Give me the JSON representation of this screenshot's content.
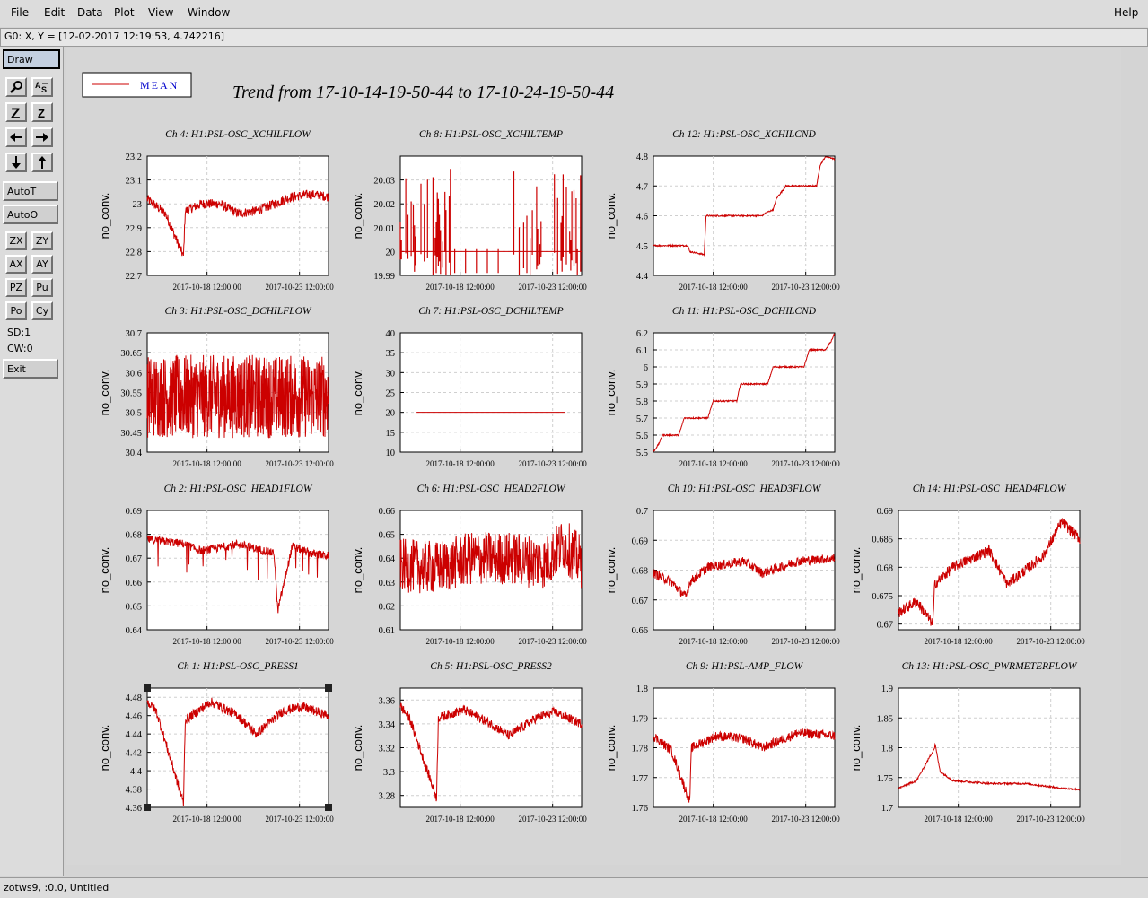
{
  "menu": {
    "items": [
      "File",
      "Edit",
      "Data",
      "Plot",
      "View",
      "Window"
    ],
    "help": "Help"
  },
  "coords": "G0: X, Y = [12-02-2017 12:19:53, 4.742216]",
  "toolbar": {
    "draw": "Draw",
    "autot": "AutoT",
    "autoo": "AutoO",
    "zx": "ZX",
    "zy": "ZY",
    "ax": "AX",
    "ay": "AY",
    "pz": "PZ",
    "pu": "Pu",
    "po": "Po",
    "cy": "Cy",
    "sd": "SD:1",
    "cw": "CW:0",
    "exit": "Exit"
  },
  "legend": {
    "label": "MEAN",
    "color": "#cc0000"
  },
  "title": "Trend from 17-10-14-19-50-44 to 17-10-24-19-50-44",
  "status": "zotws9, :0.0, Untitled",
  "chart_data": [
    {
      "type": "line",
      "title": "Ch 4: H1:PSL-OSC_XCHILFLOW",
      "ylabel": "no_conv.",
      "yticks": [
        "22.7",
        "22.8",
        "22.9",
        "23",
        "23.1",
        "23.2"
      ],
      "ylim": [
        22.7,
        23.2
      ],
      "xticks": [
        "2017-10-18 12:00:00",
        "2017-10-23 12:00:00"
      ],
      "shape": "noisydip",
      "series": [
        {
          "name": "MEAN",
          "x": [
            0,
            0.1,
            0.2,
            0.21,
            0.3,
            0.4,
            0.5,
            0.6,
            0.7,
            0.8,
            0.9,
            1
          ],
          "y": [
            23.02,
            22.96,
            22.78,
            22.97,
            23.0,
            23.0,
            22.96,
            22.97,
            23.0,
            23.03,
            23.04,
            23.03
          ]
        }
      ]
    },
    {
      "type": "line",
      "title": "Ch 8: H1:PSL-OSC_XCHILTEMP",
      "ylabel": "no_conv.",
      "yticks": [
        "19.99",
        "20",
        "20.01",
        "20.02",
        "20.03"
      ],
      "ylim": [
        19.99,
        20.04
      ],
      "xticks": [
        "2017-10-18 12:00:00",
        "2017-10-23 12:00:00"
      ],
      "shape": "spiky",
      "series": [
        {
          "name": "MEAN",
          "x": [
            0,
            1
          ],
          "y": [
            20.0,
            20.0
          ]
        }
      ]
    },
    {
      "type": "line",
      "title": "Ch 12: H1:PSL-OSC_XCHILCND",
      "ylabel": "no_conv.",
      "yticks": [
        "4.4",
        "4.5",
        "4.6",
        "4.7",
        "4.8"
      ],
      "ylim": [
        4.4,
        4.8
      ],
      "xticks": [
        "2017-10-18 12:00:00",
        "2017-10-23 12:00:00"
      ],
      "shape": "step",
      "series": [
        {
          "name": "MEAN",
          "x": [
            0,
            0.19,
            0.2,
            0.28,
            0.29,
            0.46,
            0.6,
            0.62,
            0.66,
            0.68,
            0.72,
            0.73,
            0.9,
            0.92,
            0.95,
            1.0
          ],
          "y": [
            4.5,
            4.5,
            4.48,
            4.47,
            4.6,
            4.6,
            4.6,
            4.61,
            4.62,
            4.66,
            4.69,
            4.7,
            4.7,
            4.77,
            4.8,
            4.79
          ]
        }
      ]
    },
    {
      "type": "line",
      "title": "Ch 3: H1:PSL-OSC_DCHILFLOW",
      "ylabel": "no_conv.",
      "yticks": [
        "30.4",
        "30.45",
        "30.5",
        "30.55",
        "30.6",
        "30.65",
        "30.7"
      ],
      "ylim": [
        30.4,
        30.7
      ],
      "xticks": [
        "2017-10-18 12:00:00",
        "2017-10-23 12:00:00"
      ],
      "shape": "band",
      "series": [
        {
          "name": "MEAN",
          "x": [
            0,
            1
          ],
          "y": [
            30.54,
            30.54
          ]
        }
      ]
    },
    {
      "type": "line",
      "title": "Ch 7: H1:PSL-OSC_DCHILTEMP",
      "ylabel": "no_conv.",
      "yticks": [
        "10",
        "15",
        "20",
        "25",
        "30",
        "35",
        "40"
      ],
      "ylim": [
        10,
        40
      ],
      "xticks": [
        "2017-10-18 12:00:00",
        "2017-10-23 12:00:00"
      ],
      "shape": "flat",
      "series": [
        {
          "name": "MEAN",
          "x": [
            0.09,
            0.91
          ],
          "y": [
            20,
            20
          ]
        }
      ]
    },
    {
      "type": "line",
      "title": "Ch 11: H1:PSL-OSC_DCHILCND",
      "ylabel": "no_conv.",
      "yticks": [
        "5.5",
        "5.6",
        "5.7",
        "5.8",
        "5.9",
        "6",
        "6.1",
        "6.2"
      ],
      "ylim": [
        5.5,
        6.2
      ],
      "xticks": [
        "2017-10-18 12:00:00",
        "2017-10-23 12:00:00"
      ],
      "shape": "step",
      "series": [
        {
          "name": "MEAN",
          "x": [
            0,
            0.03,
            0.05,
            0.14,
            0.17,
            0.3,
            0.33,
            0.46,
            0.48,
            0.63,
            0.66,
            0.83,
            0.86,
            0.95,
            0.98,
            1.0
          ],
          "y": [
            5.5,
            5.55,
            5.6,
            5.6,
            5.7,
            5.7,
            5.8,
            5.8,
            5.9,
            5.9,
            6.0,
            6.0,
            6.1,
            6.1,
            6.15,
            6.2
          ]
        }
      ]
    },
    {
      "type": "line",
      "title": "Ch 2: H1:PSL-OSC_HEAD1FLOW",
      "ylabel": "no_conv.",
      "yticks": [
        "0.64",
        "0.65",
        "0.66",
        "0.67",
        "0.68",
        "0.69"
      ],
      "ylim": [
        0.64,
        0.69
      ],
      "xticks": [
        "2017-10-18 12:00:00",
        "2017-10-23 12:00:00"
      ],
      "shape": "dips",
      "series": [
        {
          "name": "MEAN",
          "x": [
            0,
            0.2,
            0.3,
            0.5,
            0.7,
            0.72,
            0.8,
            0.9,
            1
          ],
          "y": [
            0.678,
            0.676,
            0.673,
            0.676,
            0.672,
            0.648,
            0.675,
            0.672,
            0.671
          ]
        }
      ]
    },
    {
      "type": "line",
      "title": "Ch 6: H1:PSL-OSC_HEAD2FLOW",
      "ylabel": "no_conv.",
      "yticks": [
        "0.61",
        "0.62",
        "0.63",
        "0.64",
        "0.65",
        "0.66"
      ],
      "ylim": [
        0.61,
        0.66
      ],
      "xticks": [
        "2017-10-18 12:00:00",
        "2017-10-23 12:00:00"
      ],
      "shape": "noisy",
      "series": [
        {
          "name": "MEAN",
          "x": [
            0,
            0.2,
            0.4,
            0.6,
            0.8,
            0.9,
            1
          ],
          "y": [
            0.637,
            0.636,
            0.64,
            0.64,
            0.638,
            0.646,
            0.638
          ]
        }
      ]
    },
    {
      "type": "line",
      "title": "Ch 10: H1:PSL-OSC_HEAD3FLOW",
      "ylabel": "no_conv.",
      "yticks": [
        "0.66",
        "0.67",
        "0.68",
        "0.69",
        "0.7"
      ],
      "ylim": [
        0.66,
        0.7
      ],
      "xticks": [
        "2017-10-18 12:00:00",
        "2017-10-23 12:00:00"
      ],
      "shape": "noisydip",
      "series": [
        {
          "name": "MEAN",
          "x": [
            0,
            0.1,
            0.18,
            0.2,
            0.3,
            0.5,
            0.6,
            0.8,
            1
          ],
          "y": [
            0.679,
            0.676,
            0.671,
            0.676,
            0.681,
            0.683,
            0.679,
            0.683,
            0.684
          ]
        }
      ]
    },
    {
      "type": "line",
      "title": "Ch 14: H1:PSL-OSC_HEAD4FLOW",
      "ylabel": "no_conv.",
      "yticks": [
        "0.67",
        "0.675",
        "0.68",
        "0.685",
        "0.69"
      ],
      "ylim": [
        0.669,
        0.69
      ],
      "xticks": [
        "2017-10-18 12:00:00",
        "2017-10-23 12:00:00"
      ],
      "shape": "rising",
      "series": [
        {
          "name": "MEAN",
          "x": [
            0,
            0.1,
            0.19,
            0.2,
            0.3,
            0.5,
            0.6,
            0.8,
            0.9,
            1
          ],
          "y": [
            0.672,
            0.674,
            0.67,
            0.677,
            0.68,
            0.683,
            0.677,
            0.682,
            0.688,
            0.685
          ]
        }
      ]
    },
    {
      "type": "line",
      "title": "Ch 1: H1:PSL-OSC_PRESS1",
      "ylabel": "no_conv.",
      "yticks": [
        "4.36",
        "4.38",
        "4.4",
        "4.42",
        "4.44",
        "4.46",
        "4.48"
      ],
      "ylim": [
        4.36,
        4.49
      ],
      "xticks": [
        "2017-10-18 12:00:00",
        "2017-10-23 12:00:00"
      ],
      "shape": "noisydip",
      "series": [
        {
          "name": "MEAN",
          "x": [
            0,
            0.05,
            0.2,
            0.21,
            0.35,
            0.5,
            0.6,
            0.75,
            0.85,
            1
          ],
          "y": [
            4.475,
            4.465,
            4.365,
            4.455,
            4.475,
            4.46,
            4.44,
            4.465,
            4.47,
            4.46
          ]
        }
      ]
    },
    {
      "type": "line",
      "title": "Ch 5: H1:PSL-OSC_PRESS2",
      "ylabel": "no_conv.",
      "yticks": [
        "3.28",
        "3.3",
        "3.32",
        "3.34",
        "3.36"
      ],
      "ylim": [
        3.27,
        3.37
      ],
      "xticks": [
        "2017-10-18 12:00:00",
        "2017-10-23 12:00:00"
      ],
      "shape": "noisydip",
      "series": [
        {
          "name": "MEAN",
          "x": [
            0,
            0.05,
            0.2,
            0.21,
            0.35,
            0.5,
            0.6,
            0.75,
            0.85,
            1
          ],
          "y": [
            3.355,
            3.345,
            3.278,
            3.345,
            3.352,
            3.34,
            3.33,
            3.345,
            3.35,
            3.34
          ]
        }
      ]
    },
    {
      "type": "line",
      "title": "Ch 9: H1:PSL-AMP_FLOW",
      "ylabel": "no_conv.",
      "yticks": [
        "1.76",
        "1.77",
        "1.78",
        "1.79",
        "1.8"
      ],
      "ylim": [
        1.76,
        1.8
      ],
      "xticks": [
        "2017-10-18 12:00:00",
        "2017-10-23 12:00:00"
      ],
      "shape": "noisydip",
      "series": [
        {
          "name": "MEAN",
          "x": [
            0,
            0.1,
            0.2,
            0.21,
            0.35,
            0.5,
            0.6,
            0.8,
            1
          ],
          "y": [
            1.784,
            1.779,
            1.762,
            1.78,
            1.784,
            1.783,
            1.78,
            1.785,
            1.784
          ]
        }
      ]
    },
    {
      "type": "line",
      "title": "Ch 13: H1:PSL-OSC_PWRMETERFLOW",
      "ylabel": "no_conv.",
      "yticks": [
        "1.7",
        "1.75",
        "1.8",
        "1.85",
        "1.9"
      ],
      "ylim": [
        1.7,
        1.9
      ],
      "xticks": [
        "2017-10-18 12:00:00",
        "2017-10-23 12:00:00"
      ],
      "shape": "peak",
      "series": [
        {
          "name": "MEAN",
          "x": [
            0,
            0.1,
            0.2,
            0.2,
            0.23,
            0.3,
            0.5,
            0.7,
            0.9,
            1
          ],
          "y": [
            1.732,
            1.745,
            1.8,
            1.81,
            1.76,
            1.745,
            1.74,
            1.74,
            1.732,
            1.73
          ]
        }
      ]
    }
  ]
}
